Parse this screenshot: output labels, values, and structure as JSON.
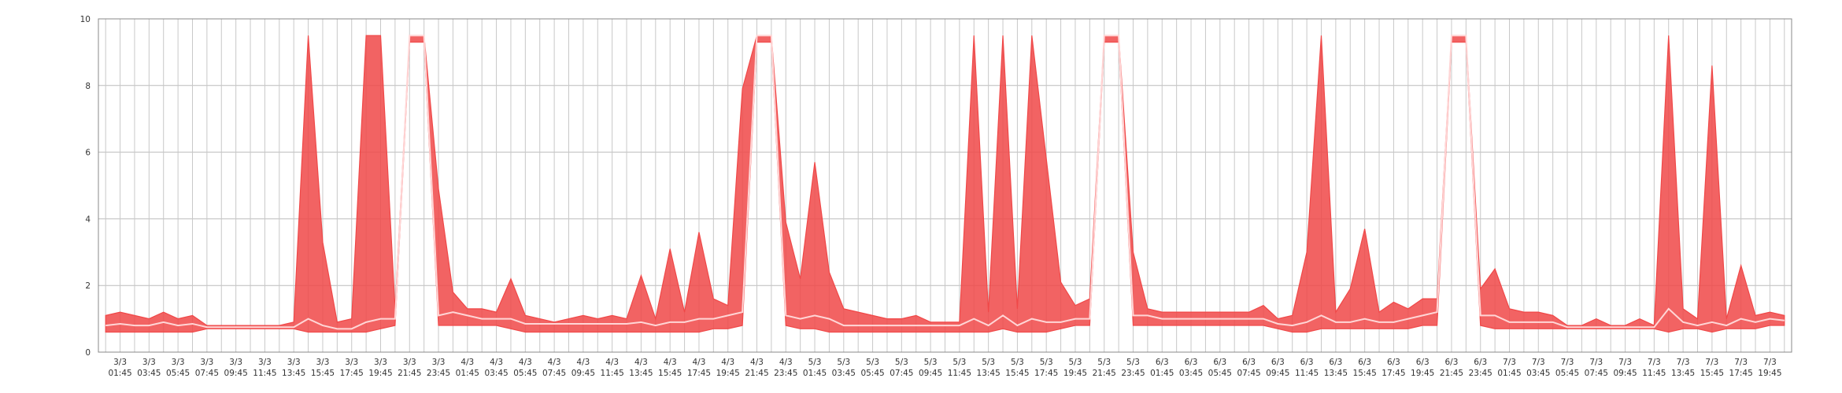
{
  "chart_data": {
    "type": "band",
    "ylim": [
      0,
      10
    ],
    "yticks": [
      0,
      2,
      4,
      6,
      8,
      10
    ],
    "grid": true,
    "categories": [
      null,
      [
        "3/3",
        "01:45"
      ],
      null,
      [
        "3/3",
        "03:45"
      ],
      null,
      [
        "3/3",
        "05:45"
      ],
      null,
      [
        "3/3",
        "07:45"
      ],
      null,
      [
        "3/3",
        "09:45"
      ],
      null,
      [
        "3/3",
        "11:45"
      ],
      null,
      [
        "3/3",
        "13:45"
      ],
      null,
      [
        "3/3",
        "15:45"
      ],
      null,
      [
        "3/3",
        "17:45"
      ],
      null,
      [
        "3/3",
        "19:45"
      ],
      null,
      [
        "3/3",
        "21:45"
      ],
      null,
      [
        "3/3",
        "23:45"
      ],
      null,
      [
        "4/3",
        "01:45"
      ],
      null,
      [
        "4/3",
        "03:45"
      ],
      null,
      [
        "4/3",
        "05:45"
      ],
      null,
      [
        "4/3",
        "07:45"
      ],
      null,
      [
        "4/3",
        "09:45"
      ],
      null,
      [
        "4/3",
        "11:45"
      ],
      null,
      [
        "4/3",
        "13:45"
      ],
      null,
      [
        "4/3",
        "15:45"
      ],
      null,
      [
        "4/3",
        "17:45"
      ],
      null,
      [
        "4/3",
        "19:45"
      ],
      null,
      [
        "4/3",
        "21:45"
      ],
      null,
      [
        "4/3",
        "23:45"
      ],
      null,
      [
        "5/3",
        "01:45"
      ],
      null,
      [
        "5/3",
        "03:45"
      ],
      null,
      [
        "5/3",
        "05:45"
      ],
      null,
      [
        "5/3",
        "07:45"
      ],
      null,
      [
        "5/3",
        "09:45"
      ],
      null,
      [
        "5/3",
        "11:45"
      ],
      null,
      [
        "5/3",
        "13:45"
      ],
      null,
      [
        "5/3",
        "15:45"
      ],
      null,
      [
        "5/3",
        "17:45"
      ],
      null,
      [
        "5/3",
        "19:45"
      ],
      null,
      [
        "5/3",
        "21:45"
      ],
      null,
      [
        "5/3",
        "23:45"
      ],
      null,
      [
        "6/3",
        "01:45"
      ],
      null,
      [
        "6/3",
        "03:45"
      ],
      null,
      [
        "6/3",
        "05:45"
      ],
      null,
      [
        "6/3",
        "07:45"
      ],
      null,
      [
        "6/3",
        "09:45"
      ],
      null,
      [
        "6/3",
        "11:45"
      ],
      null,
      [
        "6/3",
        "13:45"
      ],
      null,
      [
        "6/3",
        "15:45"
      ],
      null,
      [
        "6/3",
        "17:45"
      ],
      null,
      [
        "6/3",
        "19:45"
      ],
      null,
      [
        "6/3",
        "21:45"
      ],
      null,
      [
        "6/3",
        "23:45"
      ],
      null,
      [
        "7/3",
        "01:45"
      ],
      null,
      [
        "7/3",
        "03:45"
      ],
      null,
      [
        "7/3",
        "05:45"
      ],
      null,
      [
        "7/3",
        "07:45"
      ],
      null,
      [
        "7/3",
        "09:45"
      ],
      null,
      [
        "7/3",
        "11:45"
      ],
      null,
      [
        "7/3",
        "13:45"
      ],
      null,
      [
        "7/3",
        "15:45"
      ],
      null,
      [
        "7/3",
        "17:45"
      ],
      null,
      [
        "7/3",
        "19:45"
      ],
      null
    ],
    "series": [
      {
        "color": "#f04848",
        "values": [
          1.1,
          1.2,
          1.1,
          1.0,
          1.2,
          1.0,
          1.1,
          0.8,
          0.8,
          0.8,
          0.8,
          0.8,
          0.8,
          0.9,
          9.5,
          3.3,
          0.9,
          1.0,
          9.5,
          9.5,
          1.3,
          9.5,
          9.5,
          4.9,
          1.8,
          1.3,
          1.3,
          1.2,
          2.2,
          1.1,
          1.0,
          0.9,
          1.0,
          1.1,
          1.0,
          1.1,
          1.0,
          2.3,
          1.0,
          3.1,
          1.2,
          3.6,
          1.6,
          1.4,
          7.9,
          9.5,
          9.5,
          3.9,
          2.2,
          5.7,
          2.4,
          1.3,
          1.2,
          1.1,
          1.0,
          1.0,
          1.1,
          0.9,
          0.9,
          0.9,
          9.5,
          1.2,
          9.5,
          1.3,
          9.5,
          5.8,
          2.1,
          1.4,
          1.6,
          9.5,
          9.5,
          3.0,
          1.3,
          1.2,
          1.2,
          1.2,
          1.2,
          1.2,
          1.2,
          1.2,
          1.4,
          1.0,
          1.1,
          3.0,
          9.5,
          1.2,
          1.9,
          3.7,
          1.2,
          1.5,
          1.3,
          1.6,
          1.6,
          9.5,
          9.5,
          1.9,
          2.5,
          1.3,
          1.2,
          1.2,
          1.1,
          0.8,
          0.8,
          1.0,
          0.8,
          0.8,
          1.0,
          0.8,
          9.5,
          1.3,
          1.0,
          8.6,
          1.0,
          2.6,
          1.1,
          1.2,
          1.1
        ]
      },
      {
        "color": "#f04848",
        "values": [
          0.6,
          0.6,
          0.6,
          0.6,
          0.6,
          0.6,
          0.6,
          0.7,
          0.7,
          0.7,
          0.7,
          0.7,
          0.7,
          0.7,
          0.6,
          0.6,
          0.6,
          0.6,
          0.6,
          0.7,
          0.8,
          9.3,
          9.3,
          0.8,
          0.8,
          0.8,
          0.8,
          0.8,
          0.7,
          0.6,
          0.6,
          0.6,
          0.6,
          0.6,
          0.6,
          0.6,
          0.6,
          0.6,
          0.6,
          0.6,
          0.6,
          0.6,
          0.7,
          0.7,
          0.8,
          9.3,
          9.3,
          0.8,
          0.7,
          0.7,
          0.6,
          0.6,
          0.6,
          0.6,
          0.6,
          0.6,
          0.6,
          0.6,
          0.6,
          0.6,
          0.6,
          0.6,
          0.7,
          0.6,
          0.6,
          0.6,
          0.7,
          0.8,
          0.8,
          9.3,
          9.3,
          0.8,
          0.8,
          0.8,
          0.8,
          0.8,
          0.8,
          0.8,
          0.8,
          0.8,
          0.8,
          0.7,
          0.6,
          0.6,
          0.7,
          0.7,
          0.7,
          0.7,
          0.7,
          0.7,
          0.7,
          0.8,
          0.8,
          9.3,
          9.3,
          0.8,
          0.7,
          0.7,
          0.7,
          0.7,
          0.7,
          0.7,
          0.7,
          0.7,
          0.7,
          0.7,
          0.7,
          0.7,
          0.6,
          0.7,
          0.7,
          0.6,
          0.7,
          0.7,
          0.7,
          0.8,
          0.8
        ]
      },
      {
        "color": "#ffd6d6",
        "values": [
          0.8,
          0.85,
          0.8,
          0.8,
          0.9,
          0.8,
          0.85,
          0.75,
          0.75,
          0.75,
          0.75,
          0.75,
          0.75,
          0.75,
          1.0,
          0.8,
          0.7,
          0.7,
          0.9,
          1.0,
          1.0,
          9.5,
          9.5,
          1.1,
          1.2,
          1.1,
          1.0,
          1.0,
          1.0,
          0.85,
          0.85,
          0.85,
          0.85,
          0.85,
          0.85,
          0.85,
          0.85,
          0.9,
          0.8,
          0.9,
          0.9,
          1.0,
          1.0,
          1.1,
          1.2,
          9.5,
          9.5,
          1.1,
          1.0,
          1.1,
          1.0,
          0.8,
          0.8,
          0.8,
          0.8,
          0.8,
          0.8,
          0.8,
          0.8,
          0.8,
          1.0,
          0.8,
          1.1,
          0.8,
          1.0,
          0.9,
          0.9,
          1.0,
          1.0,
          9.5,
          9.5,
          1.1,
          1.1,
          1.0,
          1.0,
          1.0,
          1.0,
          1.0,
          1.0,
          1.0,
          1.0,
          0.85,
          0.8,
          0.9,
          1.1,
          0.9,
          0.9,
          1.0,
          0.9,
          0.9,
          1.0,
          1.1,
          1.2,
          9.5,
          9.5,
          1.1,
          1.1,
          0.9,
          0.9,
          0.9,
          0.9,
          0.75,
          0.75,
          0.75,
          0.75,
          0.75,
          0.75,
          0.75,
          1.3,
          0.9,
          0.8,
          0.9,
          0.8,
          1.0,
          0.9,
          1.0,
          0.95
        ]
      }
    ]
  }
}
